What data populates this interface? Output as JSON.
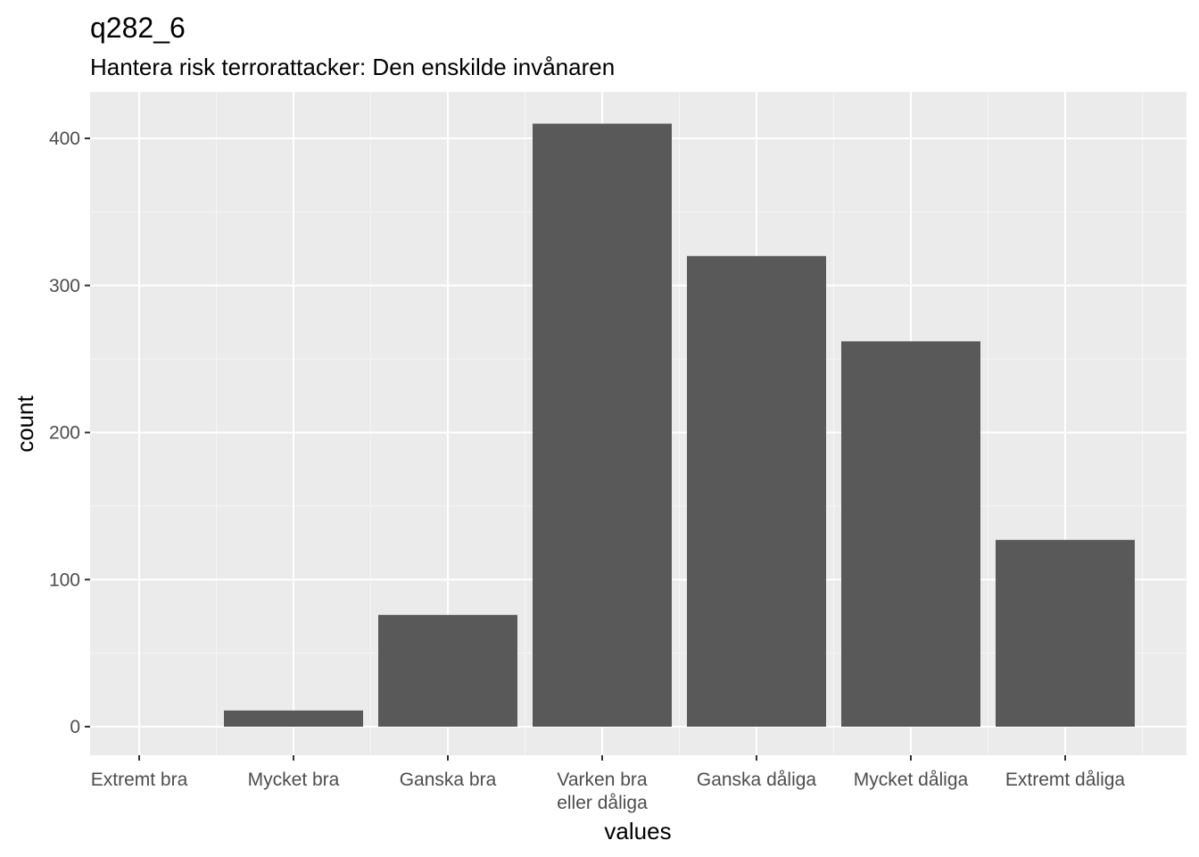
{
  "chart_data": {
    "type": "bar",
    "title": "q282_6",
    "subtitle": "Hantera risk terrorattacker: Den enskilde invånaren",
    "xlabel": "values",
    "ylabel": "count",
    "categories": [
      "Extremt bra",
      "Mycket bra",
      "Ganska bra",
      "Varken bra\neller dåliga",
      "Ganska dåliga",
      "Mycket dåliga",
      "Extremt dåliga"
    ],
    "values": [
      0,
      11,
      76,
      410,
      320,
      262,
      127
    ],
    "yticks": [
      0,
      100,
      200,
      300,
      400
    ],
    "ylim": [
      -20,
      430
    ],
    "grid": true,
    "legend": "none",
    "colors": {
      "bar": "#595959",
      "panel": "#ebebeb",
      "grid_major": "#ffffff",
      "text": "#000000",
      "tick_text": "#4d4d4d",
      "tick": "#333333"
    }
  }
}
